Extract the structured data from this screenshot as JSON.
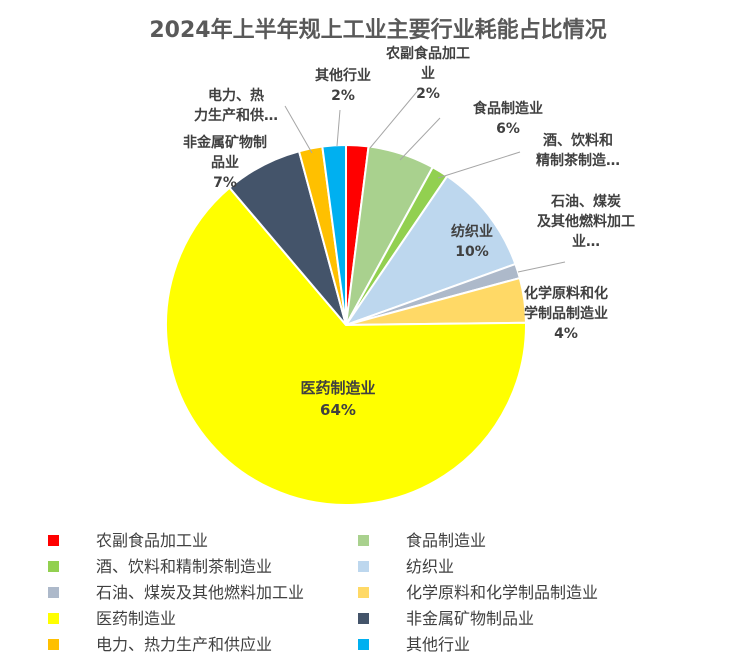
{
  "chart_data": {
    "type": "pie",
    "title": "2024年上半年规上工业主要行业耗能占比情况",
    "slices": [
      {
        "name": "农副食品加工业",
        "value": 2,
        "label_text": "2%",
        "color": "#ff0000",
        "label_lines": [
          "农副食品加工",
          "业"
        ]
      },
      {
        "name": "食品制造业",
        "value": 6,
        "label_text": "6%",
        "color": "#a9d18e",
        "label_lines": [
          "食品制造业"
        ]
      },
      {
        "name": "酒、饮料和精制茶制造业",
        "value": 1.5,
        "label_text": "",
        "color": "#92d050",
        "label_lines": [
          "酒、饮料和",
          "精制茶制造…"
        ]
      },
      {
        "name": "纺织业",
        "value": 10,
        "label_text": "10%",
        "color": "#bdd7ee",
        "label_lines": [
          "纺织业"
        ]
      },
      {
        "name": "石油、煤炭及其他燃料加工业",
        "value": 1.3,
        "label_text": "",
        "color": "#adb9ca",
        "label_lines": [
          "石油、煤炭",
          "及其他燃料加工",
          "业…"
        ]
      },
      {
        "name": "化学原料和化学制品制造业",
        "value": 4,
        "label_text": "4%",
        "color": "#ffd966",
        "label_lines": [
          "化学原料和化",
          "学制品制造业"
        ]
      },
      {
        "name": "医药制造业",
        "value": 64,
        "label_text": "64%",
        "color": "#ffff00",
        "label_lines": [
          "医药制造业"
        ]
      },
      {
        "name": "非金属矿物制品业",
        "value": 7,
        "label_text": "7%",
        "color": "#44546a",
        "label_lines": [
          "非金属矿物制",
          "品业"
        ]
      },
      {
        "name": "电力、热力生产和供应业",
        "value": 2.1,
        "label_text": "",
        "color": "#ffc000",
        "label_lines": [
          "电力、热",
          "力生产和供…"
        ]
      },
      {
        "name": "其他行业",
        "value": 2.1,
        "label_text": "2%",
        "color": "#00b0f0",
        "label_lines": [
          "其他行业"
        ]
      }
    ],
    "legend_placement": "bottom"
  }
}
